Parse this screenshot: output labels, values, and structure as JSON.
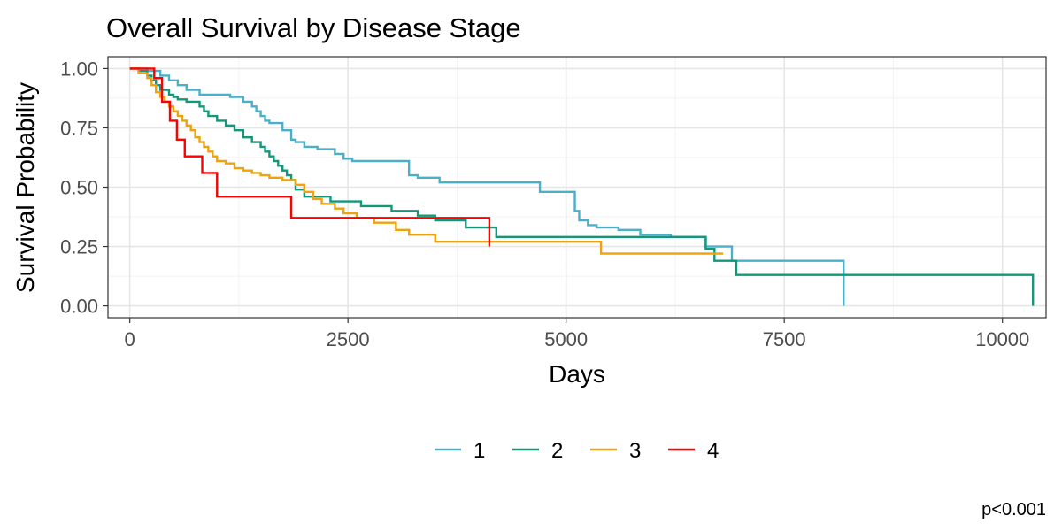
{
  "chart_data": {
    "type": "line",
    "subtype": "step",
    "title": "Overall Survival by Disease Stage",
    "xlabel": "Days",
    "ylabel": "Survival Probability",
    "xlim": [
      -250,
      10500
    ],
    "ylim": [
      -0.05,
      1.05
    ],
    "x_ticks": [
      0,
      2500,
      5000,
      7500,
      10000
    ],
    "x_tick_labels": [
      "0",
      "2500",
      "5000",
      "7500",
      "10000"
    ],
    "y_ticks": [
      0,
      0.25,
      0.5,
      0.75,
      1.0
    ],
    "y_tick_labels": [
      "0.00",
      "0.25",
      "0.50",
      "0.75",
      "1.00"
    ],
    "grid": true,
    "legend": {
      "position": "bottom",
      "labels": [
        "1",
        "2",
        "3",
        "4"
      ]
    },
    "annotation": "p<0.001",
    "series": [
      {
        "name": "1",
        "color": "#4aafc9",
        "x": [
          0,
          200,
          350,
          450,
          550,
          650,
          800,
          1150,
          1300,
          1400,
          1450,
          1500,
          1550,
          1600,
          1750,
          1850,
          1900,
          2000,
          2150,
          2350,
          2450,
          2550,
          3200,
          3300,
          3550,
          4700,
          5100,
          5150,
          5250,
          5350,
          5600,
          5850,
          6200,
          6600,
          6900,
          8180,
          8180
        ],
        "y": [
          1.0,
          0.99,
          0.97,
          0.95,
          0.93,
          0.91,
          0.89,
          0.88,
          0.86,
          0.84,
          0.82,
          0.8,
          0.78,
          0.77,
          0.74,
          0.7,
          0.69,
          0.67,
          0.66,
          0.64,
          0.62,
          0.61,
          0.55,
          0.54,
          0.52,
          0.48,
          0.4,
          0.36,
          0.34,
          0.33,
          0.32,
          0.3,
          0.29,
          0.25,
          0.19,
          0.19,
          0.0
        ]
      },
      {
        "name": "2",
        "color": "#13977a",
        "x": [
          0,
          100,
          200,
          250,
          300,
          350,
          450,
          500,
          550,
          650,
          800,
          850,
          900,
          1000,
          1100,
          1200,
          1300,
          1400,
          1500,
          1550,
          1600,
          1650,
          1700,
          1750,
          1800,
          1850,
          1900,
          2000,
          2300,
          2650,
          3000,
          3300,
          3500,
          3850,
          4200,
          6600,
          6700,
          6950,
          10350,
          10350
        ],
        "y": [
          1.0,
          0.99,
          0.97,
          0.95,
          0.93,
          0.91,
          0.89,
          0.88,
          0.87,
          0.86,
          0.84,
          0.82,
          0.8,
          0.78,
          0.76,
          0.74,
          0.71,
          0.69,
          0.67,
          0.65,
          0.63,
          0.61,
          0.59,
          0.57,
          0.55,
          0.53,
          0.49,
          0.46,
          0.44,
          0.42,
          0.4,
          0.38,
          0.36,
          0.33,
          0.29,
          0.24,
          0.19,
          0.13,
          0.13,
          0.0
        ]
      },
      {
        "name": "3",
        "color": "#eea20e",
        "x": [
          0,
          100,
          200,
          250,
          300,
          350,
          400,
          450,
          500,
          550,
          600,
          650,
          700,
          750,
          800,
          850,
          900,
          950,
          1000,
          1100,
          1200,
          1300,
          1400,
          1500,
          1600,
          1750,
          1900,
          2000,
          2100,
          2200,
          2350,
          2450,
          2600,
          2800,
          3050,
          3200,
          3500,
          5400,
          6800
        ],
        "y": [
          1.0,
          0.98,
          0.96,
          0.93,
          0.9,
          0.88,
          0.86,
          0.84,
          0.82,
          0.8,
          0.78,
          0.76,
          0.74,
          0.71,
          0.69,
          0.67,
          0.65,
          0.63,
          0.61,
          0.6,
          0.58,
          0.57,
          0.56,
          0.55,
          0.54,
          0.53,
          0.51,
          0.48,
          0.45,
          0.43,
          0.41,
          0.39,
          0.37,
          0.35,
          0.32,
          0.3,
          0.27,
          0.22,
          0.22
        ]
      },
      {
        "name": "4",
        "color": "#ff0000",
        "x": [
          0,
          280,
          370,
          460,
          540,
          630,
          830,
          1000,
          1850,
          4120
        ],
        "y": [
          1.0,
          0.96,
          0.86,
          0.78,
          0.7,
          0.63,
          0.56,
          0.46,
          0.37,
          0.25
        ]
      }
    ]
  }
}
